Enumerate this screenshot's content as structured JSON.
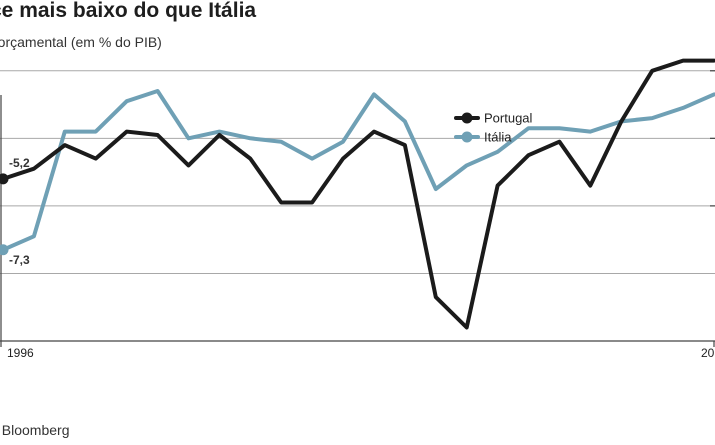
{
  "header": {
    "title": "ce mais baixo do que Itália",
    "subtitle": "e orçamental (em % do PIB)"
  },
  "footer": {
    "source": ": Bloomberg"
  },
  "colors": {
    "portugal": "#1b1b1b",
    "italia": "#6fa0b5",
    "grid": "#a8a8a8"
  },
  "chart_data": {
    "type": "line",
    "x": [
      1996,
      1997,
      1998,
      1999,
      2000,
      2001,
      2002,
      2003,
      2004,
      2005,
      2006,
      2007,
      2008,
      2009,
      2010,
      2011,
      2012,
      2013,
      2014,
      2015,
      2016,
      2017,
      2018,
      2019
    ],
    "x_tick_labels": [
      "1996",
      "20"
    ],
    "series": [
      {
        "name": "Portugal",
        "values": [
          -5.2,
          -4.9,
          -4.2,
          -4.6,
          -3.8,
          -3.9,
          -4.8,
          -3.9,
          -4.6,
          -5.9,
          -5.9,
          -4.6,
          -3.8,
          -4.2,
          -8.7,
          -9.6,
          -5.4,
          -4.5,
          -4.1,
          -5.4,
          -3.5,
          -2.0,
          -1.7,
          -1.7
        ],
        "labels": {
          "0": "-5,2"
        }
      },
      {
        "name": "Itália",
        "values": [
          -7.3,
          -6.9,
          -3.8,
          -3.8,
          -2.9,
          -2.6,
          -4.0,
          -3.8,
          -4.0,
          -4.1,
          -4.6,
          -4.1,
          -2.7,
          -3.5,
          -5.5,
          -4.8,
          -4.4,
          -3.7,
          -3.7,
          -3.8,
          -3.5,
          -3.4,
          -3.1,
          -2.7
        ],
        "labels": {
          "0": "-7,3"
        }
      }
    ],
    "ylim": [
      -10,
      -1
    ],
    "grid": true,
    "legend": "top-center"
  }
}
